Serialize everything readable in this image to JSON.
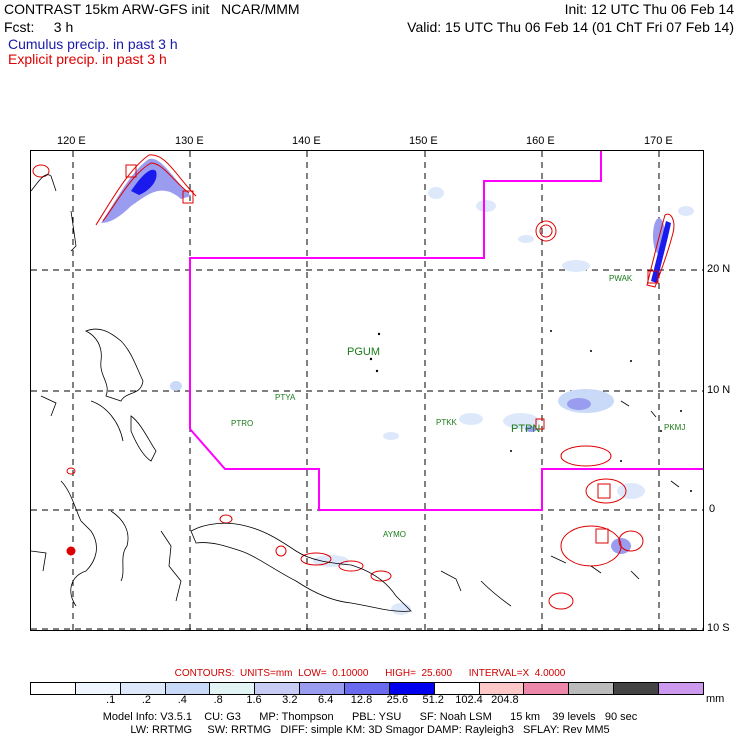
{
  "header": {
    "line1_left": "CONTRAST 15km ARW-GFS init   NCAR/MMM",
    "line1_right": "Init: 12 UTC Thu 06 Feb 14",
    "line2_left": "Fcst:     3 h",
    "line2_right": "Valid: 15 UTC Thu 06 Feb 14 (01 ChT Fri 07 Feb 14)",
    "legend_cumulus": "Cumulus precip. in past 3 h",
    "legend_explicit": "Explicit precip. in past 3 h",
    "cumulus_color": "#1a1aaa",
    "explicit_color": "#dd0000"
  },
  "map": {
    "lon_labels": [
      "120 E",
      "130 E",
      "140 E",
      "150 E",
      "160 E",
      "170 E"
    ],
    "lat_labels": [
      "20 N",
      "10 N",
      "0",
      "10 S"
    ],
    "boundary_color": "#ff00ff",
    "stations": [
      "PGUM",
      "PTYA",
      "PTRO",
      "PTKK",
      "PTPN",
      "PWAK",
      "PKMJ",
      "AYMO"
    ]
  },
  "legend": {
    "contours_line": "CONTOURS:  UNITS=mm  LOW=  0.10000      HIGH=  25.600      INTERVAL=X  4.0000",
    "colors": [
      "#ffffff",
      "#f0f6ff",
      "#dde9fb",
      "#c8daf8",
      "#e2f4f4",
      "#c8ccf4",
      "#9a9cf0",
      "#6a6aee",
      "#0000ee",
      "#ffffff",
      "#ffc8c8",
      "#ee88aa",
      "#bbbbbb",
      "#444444",
      "#cc99ee"
    ],
    "labels": [
      ".1",
      ".2",
      ".4",
      ".8",
      "1.6",
      "3.2",
      "6.4",
      "12.8",
      "25.6",
      "51.2",
      "102.4",
      "204.8"
    ],
    "units": "mm"
  },
  "footer": {
    "line1": "Model Info: V3.5.1    CU: G3      MP: Thompson      PBL: YSU      SF: Noah LSM      15 km    39 levels   90 sec",
    "line2": "LW: RRTMG     SW: RRTMG   DIFF: simple KM: 3D Smagor DAMP: Rayleigh3   SFLAY: Rev MM5"
  }
}
